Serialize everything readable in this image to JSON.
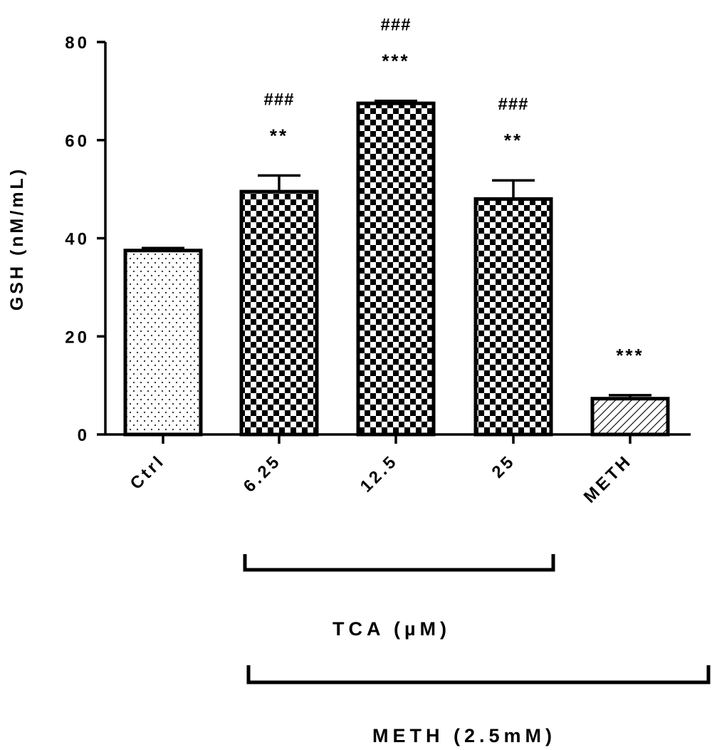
{
  "chart_data": {
    "type": "bar",
    "ylabel": "GSH (nM/mL)",
    "ylim": [
      0,
      80
    ],
    "yticks": [
      0,
      20,
      40,
      60,
      80
    ],
    "categories": [
      "Ctrl",
      "6.25",
      "12.5",
      "25",
      "METH"
    ],
    "values": [
      37.5,
      49.5,
      67.5,
      48.0,
      7.3
    ],
    "errors": [
      0.5,
      3.3,
      0.5,
      3.8,
      0.7
    ],
    "patterns": [
      "dots",
      "checker",
      "checker",
      "checker",
      "hatch"
    ],
    "annotations": [
      {
        "category": "6.25",
        "stars": "**",
        "hashes": "###"
      },
      {
        "category": "12.5",
        "stars": "***",
        "hashes": "###"
      },
      {
        "category": "25",
        "stars": "**",
        "hashes": "###"
      },
      {
        "category": "METH",
        "stars": "***",
        "hashes": ""
      }
    ],
    "groups": [
      {
        "label": "TCA (µM)",
        "from": "6.25",
        "to": "25"
      },
      {
        "label": "METH (2.5mM)",
        "from": "6.25",
        "to": "METH"
      }
    ]
  }
}
